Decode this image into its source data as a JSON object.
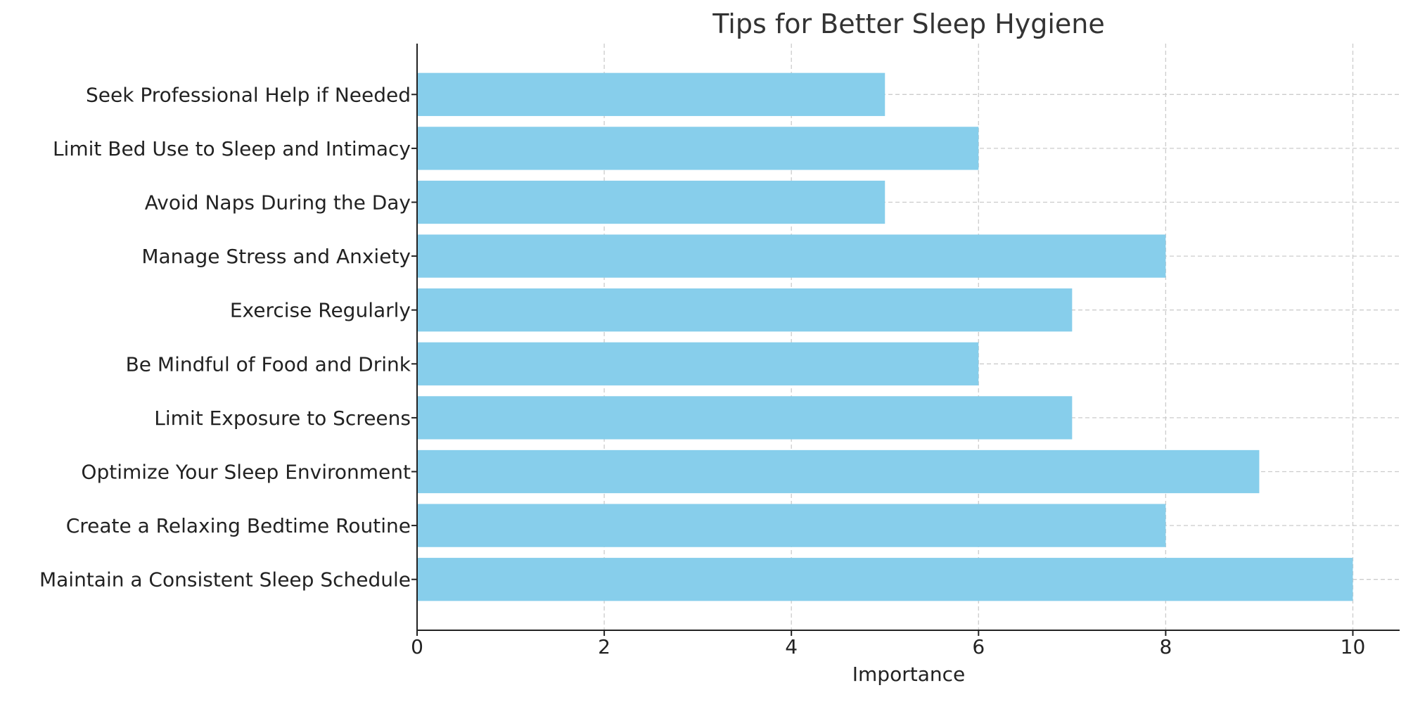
{
  "chart_data": {
    "type": "bar",
    "orientation": "horizontal",
    "title": "Tips for Better Sleep Hygiene",
    "xlabel": "Importance",
    "ylabel": "",
    "categories": [
      "Maintain a Consistent Sleep Schedule",
      "Create a Relaxing Bedtime Routine",
      "Optimize Your Sleep Environment",
      "Limit Exposure to Screens",
      "Be Mindful of Food and Drink",
      "Exercise Regularly",
      "Manage Stress and Anxiety",
      "Avoid Naps During the Day",
      "Limit Bed Use to Sleep and Intimacy",
      "Seek Professional Help if Needed"
    ],
    "values": [
      10,
      8,
      9,
      7,
      6,
      7,
      8,
      5,
      6,
      5
    ],
    "xlim": [
      0,
      10.5
    ],
    "xticks": [
      "0",
      "2",
      "4",
      "6",
      "8",
      "10"
    ],
    "grid": true,
    "colors": {
      "bar": "#87ceeb",
      "grid": "#cccccc",
      "axis": "#222222"
    }
  }
}
